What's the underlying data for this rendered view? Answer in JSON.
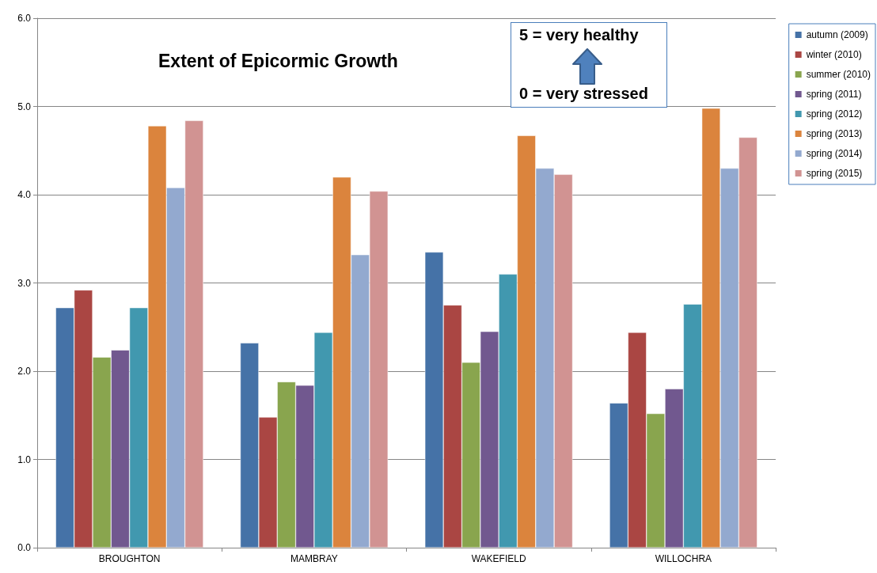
{
  "chart_data": {
    "type": "bar",
    "title": "Extent of Epicormic Growth",
    "annotations": [
      "5 = very healthy",
      "0 = very stressed"
    ],
    "categories": [
      "BROUGHTON",
      "MAMBRAY",
      "WAKEFIELD",
      "WILLOCHRA"
    ],
    "series": [
      {
        "name": "autumn (2009)",
        "color": "#4572a7",
        "values": [
          2.72,
          2.32,
          3.35,
          1.64
        ]
      },
      {
        "name": "winter (2010)",
        "color": "#aa4643",
        "values": [
          2.92,
          1.48,
          2.75,
          2.44
        ]
      },
      {
        "name": "summer (2010)",
        "color": "#89a54e",
        "values": [
          2.16,
          1.88,
          2.1,
          1.52
        ]
      },
      {
        "name": "spring (2011)",
        "color": "#71588f",
        "values": [
          2.24,
          1.84,
          2.45,
          1.8
        ]
      },
      {
        "name": "spring (2012)",
        "color": "#4198af",
        "values": [
          2.72,
          2.44,
          3.1,
          2.76
        ]
      },
      {
        "name": "spring (2013)",
        "color": "#db843d",
        "values": [
          4.78,
          4.2,
          4.67,
          4.98
        ]
      },
      {
        "name": "spring (2014)",
        "color": "#93a9cf",
        "values": [
          4.08,
          3.32,
          4.3,
          4.3
        ]
      },
      {
        "name": "spring (2015)",
        "color": "#d19392",
        "values": [
          4.84,
          4.04,
          4.23,
          4.65
        ]
      }
    ],
    "ylim": [
      0,
      6
    ],
    "yticks": [
      {
        "value": 0,
        "label": "0.0"
      },
      {
        "value": 1,
        "label": "1.0"
      },
      {
        "value": 2,
        "label": "2.0"
      },
      {
        "value": 3,
        "label": "3.0"
      },
      {
        "value": 4,
        "label": "4.0"
      },
      {
        "value": 5,
        "label": "5.0"
      },
      {
        "value": 6,
        "label": "6.0"
      }
    ],
    "grid": "y",
    "legend": "right"
  }
}
